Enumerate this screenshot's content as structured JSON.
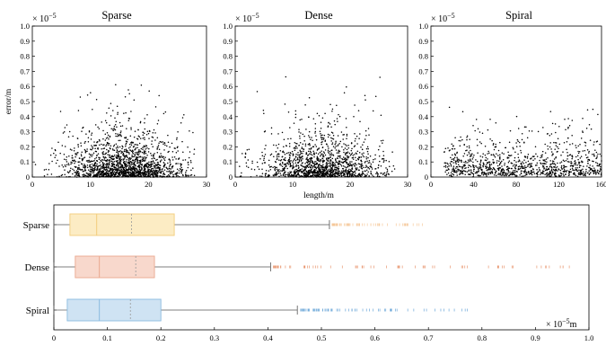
{
  "chart_data": [
    {
      "type": "scatter",
      "title": "Sparse",
      "xlabel": "",
      "ylabel": "error/m",
      "y_multiplier": "× 10^-5",
      "xlim": [
        0,
        30
      ],
      "ylim": [
        0,
        1.0
      ],
      "xticks": [
        "0",
        "10",
        "20",
        "30"
      ],
      "yticks": [
        "0",
        "0.1",
        "0.2",
        "0.3",
        "0.4",
        "0.5",
        "0.6",
        "0.7",
        "0.8",
        "0.9",
        "1.0"
      ],
      "points": {
        "count": 1700,
        "x_distribution": "roughly normal, centered ~16, spread ~5, range 0-28",
        "y_distribution": "concentrated near 0, long tail up to ~0.8"
      },
      "point_color": "#000000",
      "grid": false
    },
    {
      "type": "scatter",
      "title": "Dense",
      "xlabel": "length/m",
      "ylabel": "",
      "y_multiplier": "× 10^-5",
      "xlim": [
        0,
        30
      ],
      "ylim": [
        0,
        1.0
      ],
      "xticks": [
        "0",
        "10",
        "20",
        "30"
      ],
      "yticks": [
        "0",
        "0.1",
        "0.2",
        "0.3",
        "0.4",
        "0.5",
        "0.6",
        "0.7",
        "0.8",
        "0.9",
        "1.0"
      ],
      "points": {
        "count": 1400,
        "x_distribution": "roughly normal, centered ~15, spread ~5, range 0-27",
        "y_distribution": "concentrated near 0, long tail up to ~0.97"
      },
      "point_color": "#000000",
      "grid": false
    },
    {
      "type": "scatter",
      "title": "Spiral",
      "xlabel": "",
      "ylabel": "",
      "y_multiplier": "× 10^-5",
      "xlim": [
        0,
        160
      ],
      "ylim": [
        0,
        1.0
      ],
      "xticks": [
        "0",
        "40",
        "80",
        "120",
        "160"
      ],
      "yticks": [
        "0",
        "0.1",
        "0.2",
        "0.3",
        "0.4",
        "0.5",
        "0.6",
        "0.7",
        "0.8",
        "0.9",
        "1.0"
      ],
      "points": {
        "count": 1000,
        "x_distribution": "roughly uniform over 12-160",
        "y_distribution": "concentrated near 0, tail up to ~0.7"
      },
      "point_color": "#000000",
      "grid": false
    },
    {
      "type": "box",
      "orientation": "horizontal",
      "x_multiplier": "× 10^-5",
      "x_unit": "m",
      "xlim": [
        0,
        1.0
      ],
      "xticks": [
        "0",
        "0.1",
        "0.2",
        "0.3",
        "0.4",
        "0.5",
        "0.6",
        "0.7",
        "0.8",
        "0.9",
        "1.0"
      ],
      "categories": [
        "Sparse",
        "Dense",
        "Spiral"
      ],
      "series": [
        {
          "name": "Sparse",
          "whisker_low": 0.0,
          "q1": 0.03,
          "median": 0.08,
          "mean": 0.145,
          "q3": 0.225,
          "whisker_high": 0.515,
          "outliers_range": [
            0.52,
            0.69
          ],
          "fill": "#fcecc4",
          "stroke": "#f2cd7c",
          "flier_color": "#f5c89a"
        },
        {
          "name": "Dense",
          "whisker_low": 0.0,
          "q1": 0.04,
          "median": 0.085,
          "mean": 0.153,
          "q3": 0.188,
          "whisker_high": 0.405,
          "outliers_range": [
            0.41,
            0.97
          ],
          "fill": "#f8d8cc",
          "stroke": "#eaa990",
          "flier_color": "#e8956e"
        },
        {
          "name": "Spiral",
          "whisker_low": 0.0,
          "q1": 0.025,
          "median": 0.085,
          "mean": 0.143,
          "q3": 0.2,
          "whisker_high": 0.455,
          "outliers_range": [
            0.46,
            0.79
          ],
          "fill": "#cfe3f3",
          "stroke": "#8bbbe0",
          "flier_color": "#6aa6d8"
        }
      ]
    }
  ]
}
